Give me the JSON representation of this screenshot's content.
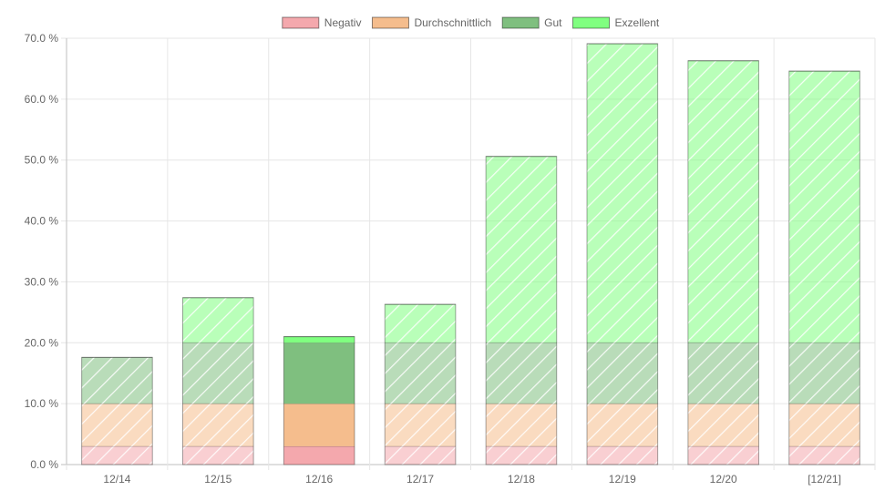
{
  "chart_data": {
    "type": "bar",
    "stacked": true,
    "categories": [
      "12/14",
      "12/15",
      "12/16",
      "12/17",
      "12/18",
      "12/19",
      "12/20",
      "[12/21]"
    ],
    "highlighted_category": "12/16",
    "totals": [
      17.6,
      27.4,
      21.0,
      26.3,
      50.6,
      69.1,
      66.3,
      64.6
    ],
    "series": [
      {
        "name": "Negativ",
        "color": "#f4a8ad",
        "values": [
          3,
          3,
          3,
          3,
          3,
          3,
          3,
          3
        ]
      },
      {
        "name": "Durchschnittlich",
        "color": "#f5bd8d",
        "values": [
          7,
          7,
          7,
          7,
          7,
          7,
          7,
          7
        ]
      },
      {
        "name": "Gut",
        "color": "#7fbf7f",
        "values": [
          7.6,
          10,
          10,
          10,
          10,
          10,
          10,
          10
        ]
      },
      {
        "name": "Exzellent",
        "color": "#80ff80",
        "values": [
          0,
          7.4,
          1.0,
          6.3,
          30.6,
          49.1,
          46.3,
          44.6
        ]
      }
    ],
    "y_ticks": [
      "0.0 %",
      "10.0 %",
      "20.0 %",
      "30.0 %",
      "40.0 %",
      "50.0 %",
      "60.0 %",
      "70.0 %"
    ],
    "ylim": [
      0,
      70
    ],
    "grid": true,
    "legend_position": "top"
  }
}
